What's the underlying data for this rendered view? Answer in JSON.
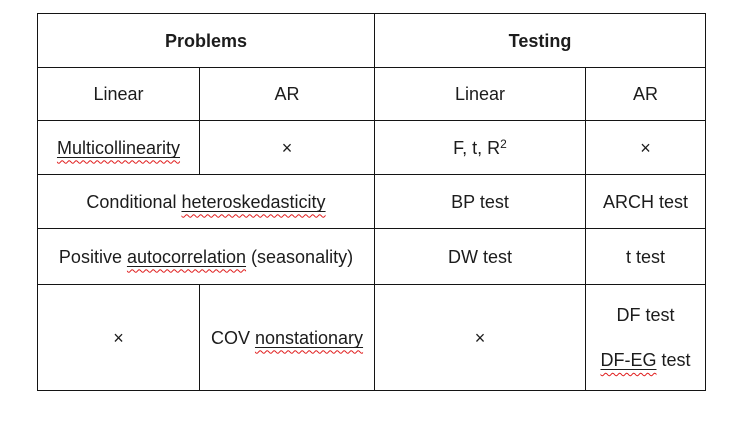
{
  "colors": {
    "border": "#141414",
    "text": "#1c1c1c",
    "squiggle_red": "#e01b1b",
    "background": "#ffffff"
  },
  "table": {
    "description": "Document table comparing econometric problems and their tests for Linear vs AR models",
    "column_count": 4,
    "rows": [
      {
        "name": "header-group-row",
        "cells": [
          {
            "name": "header-problems",
            "colspan": 2,
            "bold": true,
            "lines": [
              [
                {
                  "text": "Problems"
                }
              ]
            ]
          },
          {
            "name": "header-testing",
            "colspan": 2,
            "bold": true,
            "lines": [
              [
                {
                  "text": "Testing"
                }
              ]
            ]
          }
        ]
      },
      {
        "name": "subheader-row",
        "cells": [
          {
            "name": "subheader-problems-linear",
            "lines": [
              [
                {
                  "text": "Linear"
                }
              ]
            ]
          },
          {
            "name": "subheader-problems-ar",
            "lines": [
              [
                {
                  "text": "AR"
                }
              ]
            ]
          },
          {
            "name": "subheader-testing-linear",
            "lines": [
              [
                {
                  "text": "Linear"
                }
              ]
            ]
          },
          {
            "name": "subheader-testing-ar",
            "lines": [
              [
                {
                  "text": "AR"
                }
              ]
            ]
          }
        ]
      },
      {
        "name": "row-multicollinearity",
        "cells": [
          {
            "name": "cell-problem-multicollinearity",
            "lines": [
              [
                {
                  "text": "Multicollinearity",
                  "misspelled": true
                }
              ]
            ]
          },
          {
            "name": "cell-not-applicable",
            "lines": [
              [
                {
                  "text": "×"
                }
              ]
            ]
          },
          {
            "name": "cell-test-f-t-r2",
            "lines": [
              [
                {
                  "text": "F, t, R"
                },
                {
                  "text": "2",
                  "sup": true
                }
              ]
            ]
          },
          {
            "name": "cell-not-applicable",
            "lines": [
              [
                {
                  "text": "×"
                }
              ]
            ]
          }
        ]
      },
      {
        "name": "row-heteroskedasticity",
        "cells": [
          {
            "name": "cell-problem-conditional-heteroskedasticity",
            "colspan": 2,
            "lines": [
              [
                {
                  "text": "Conditional "
                },
                {
                  "text": "heteroskedasticity",
                  "misspelled": true
                }
              ]
            ]
          },
          {
            "name": "cell-test-bp",
            "lines": [
              [
                {
                  "text": "BP test"
                }
              ]
            ]
          },
          {
            "name": "cell-test-arch",
            "lines": [
              [
                {
                  "text": "ARCH test"
                }
              ]
            ]
          }
        ]
      },
      {
        "name": "row-autocorrelation",
        "cells": [
          {
            "name": "cell-problem-positive-autocorrelation",
            "colspan": 2,
            "lines": [
              [
                {
                  "text": "Positive "
                },
                {
                  "text": "autocorrelation",
                  "misspelled": true
                },
                {
                  "text": " (seasonality)"
                }
              ]
            ]
          },
          {
            "name": "cell-test-dw",
            "lines": [
              [
                {
                  "text": "DW test"
                }
              ]
            ]
          },
          {
            "name": "cell-test-t",
            "lines": [
              [
                {
                  "text": "t test"
                }
              ]
            ]
          }
        ]
      },
      {
        "name": "row-nonstationary",
        "cells": [
          {
            "name": "cell-not-applicable",
            "lines": [
              [
                {
                  "text": "×"
                }
              ]
            ]
          },
          {
            "name": "cell-problem-cov-nonstationary",
            "lines": [
              [
                {
                  "text": "COV "
                },
                {
                  "text": "nonstationary",
                  "misspelled": true
                }
              ]
            ]
          },
          {
            "name": "cell-not-applicable",
            "lines": [
              [
                {
                  "text": "×"
                }
              ]
            ]
          },
          {
            "name": "cell-test-df",
            "lines": [
              [
                {
                  "text": "DF test"
                }
              ],
              [
                {
                  "text": "DF-EG",
                  "misspelled": true
                },
                {
                  "text": " test"
                }
              ]
            ]
          }
        ]
      }
    ]
  }
}
